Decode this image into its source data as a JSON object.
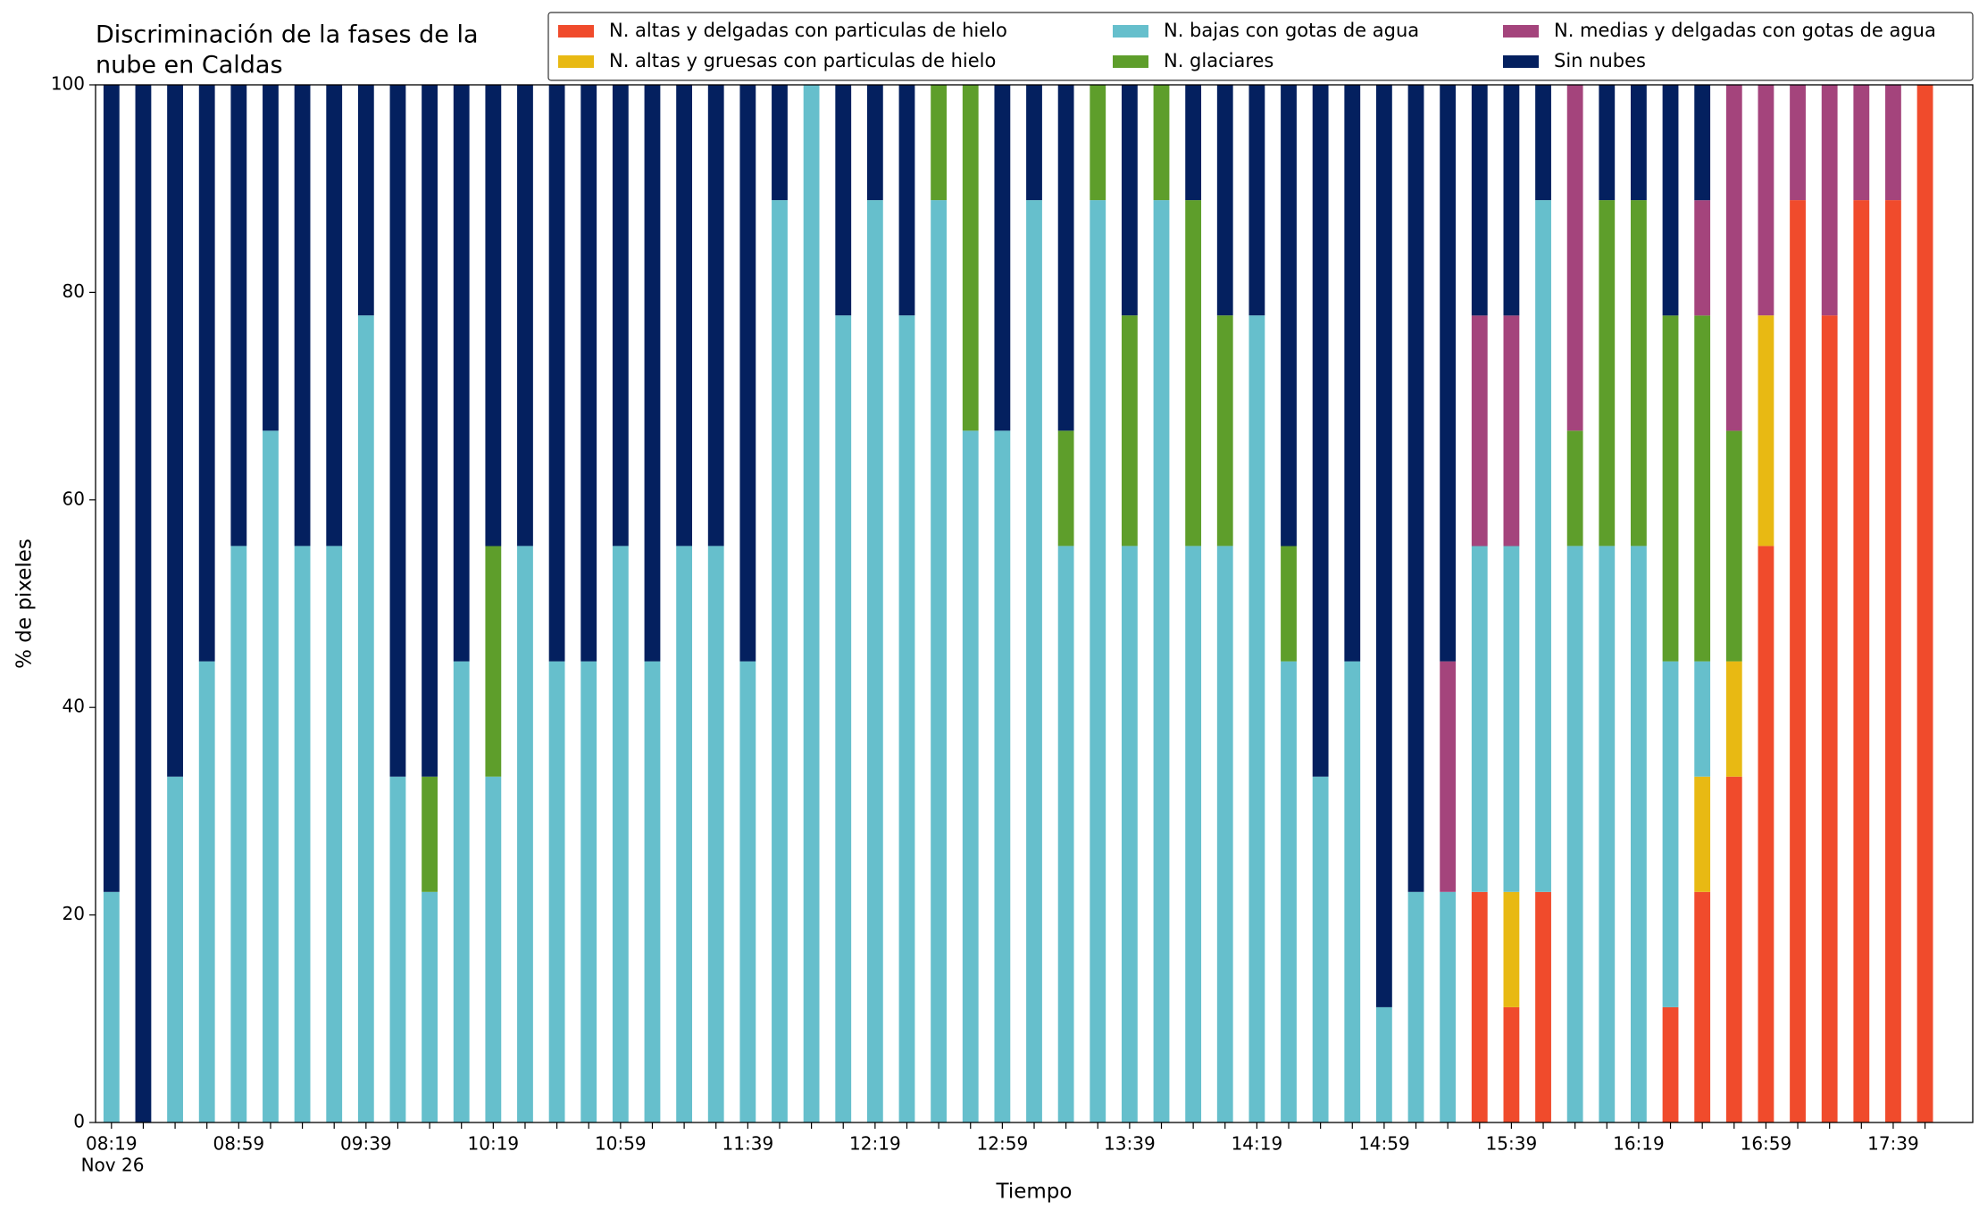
{
  "chart_data": {
    "type": "stacked_bar",
    "title": [
      "Discriminación de la fases de la",
      "nube en Caldas"
    ],
    "xlabel": "Tiempo",
    "ylabel": "% de pixeles",
    "x_sublabel": "Nov 26",
    "categories": [
      "08:19",
      null,
      null,
      null,
      "08:59",
      null,
      null,
      null,
      "09:39",
      null,
      null,
      null,
      "10:19",
      null,
      null,
      null,
      "10:59",
      null,
      null,
      null,
      "11:39",
      null,
      null,
      null,
      "12:19",
      null,
      null,
      null,
      "12:59",
      null,
      null,
      null,
      "13:39",
      null,
      null,
      null,
      "14:19",
      null,
      null,
      null,
      "14:59",
      null,
      null,
      null,
      "15:39",
      null,
      null,
      null,
      "16:19",
      null,
      null,
      null,
      "16:59",
      null,
      null,
      null,
      "17:39",
      null
    ],
    "ylim": [
      0,
      100
    ],
    "yticks": [
      0,
      20,
      40,
      60,
      80,
      100
    ],
    "legend": "top-right",
    "series": [
      {
        "name": "N. altas y delgadas con particulas de hielo",
        "color": "#f04b2c",
        "values": [
          0,
          0,
          0,
          0,
          0,
          0,
          0,
          0,
          0,
          0,
          0,
          0,
          0,
          0,
          0,
          0,
          0,
          0,
          0,
          0,
          0,
          0,
          0,
          0,
          0,
          0,
          0,
          0,
          0,
          0,
          0,
          0,
          0,
          0,
          0,
          0,
          0,
          0,
          0,
          0,
          0,
          0,
          0,
          22.22,
          11.11,
          22.22,
          0,
          0,
          0,
          11.11,
          22.22,
          33.33,
          55.56,
          88.89,
          77.78,
          88.89,
          88.89,
          100
        ]
      },
      {
        "name": "N. altas y gruesas con particulas de hielo",
        "color": "#e8b913",
        "values": [
          0,
          0,
          0,
          0,
          0,
          0,
          0,
          0,
          0,
          0,
          0,
          0,
          0,
          0,
          0,
          0,
          0,
          0,
          0,
          0,
          0,
          0,
          0,
          0,
          0,
          0,
          0,
          0,
          0,
          0,
          0,
          0,
          0,
          0,
          0,
          0,
          0,
          0,
          0,
          0,
          0,
          0,
          0,
          0,
          11.11,
          0,
          0,
          0,
          0,
          0,
          11.11,
          11.11,
          22.22,
          0,
          0,
          0,
          0,
          0
        ]
      },
      {
        "name": "N. bajas con gotas de agua",
        "color": "#66bfcc",
        "values": [
          22.22,
          0,
          33.33,
          44.44,
          55.56,
          66.67,
          55.56,
          55.56,
          77.78,
          33.33,
          22.22,
          44.44,
          33.33,
          55.56,
          44.44,
          44.44,
          55.56,
          44.44,
          55.56,
          55.56,
          44.44,
          88.89,
          100,
          77.78,
          88.89,
          77.78,
          88.89,
          66.67,
          66.67,
          88.89,
          55.56,
          88.89,
          55.56,
          88.89,
          55.56,
          55.56,
          77.78,
          44.44,
          33.33,
          44.44,
          11.11,
          22.22,
          22.22,
          33.33,
          33.33,
          66.67,
          55.56,
          55.56,
          55.56,
          33.33,
          11.11,
          0,
          0,
          0,
          0,
          0,
          0,
          0
        ]
      },
      {
        "name": "N. glaciares",
        "color": "#5e9e2b",
        "values": [
          0,
          0,
          0,
          0,
          0,
          0,
          0,
          0,
          0,
          0,
          11.11,
          0,
          22.22,
          0,
          0,
          0,
          0,
          0,
          0,
          0,
          0,
          0,
          0,
          0,
          0,
          0,
          11.11,
          33.33,
          0,
          0,
          11.11,
          11.11,
          22.22,
          11.11,
          33.33,
          22.22,
          0,
          11.11,
          0,
          0,
          0,
          0,
          0,
          0,
          0,
          0,
          11.11,
          33.33,
          33.33,
          33.33,
          33.33,
          22.22,
          0,
          0,
          0,
          0,
          0,
          0
        ]
      },
      {
        "name": "N. medias y delgadas con gotas de agua",
        "color": "#a4447c",
        "values": [
          0,
          0,
          0,
          0,
          0,
          0,
          0,
          0,
          0,
          0,
          0,
          0,
          0,
          0,
          0,
          0,
          0,
          0,
          0,
          0,
          0,
          0,
          0,
          0,
          0,
          0,
          0,
          0,
          0,
          0,
          0,
          0,
          0,
          0,
          0,
          0,
          0,
          0,
          0,
          0,
          0,
          0,
          22.22,
          22.22,
          22.22,
          0,
          33.33,
          0,
          0,
          0,
          11.11,
          33.33,
          22.22,
          11.11,
          22.22,
          11.11,
          11.11,
          0
        ]
      },
      {
        "name": "Sin nubes",
        "color": "#04205f",
        "values": [
          77.78,
          100,
          66.67,
          55.56,
          44.44,
          33.33,
          44.44,
          44.44,
          22.22,
          66.67,
          66.67,
          55.56,
          44.44,
          44.44,
          55.56,
          55.56,
          44.44,
          55.56,
          44.44,
          44.44,
          55.56,
          11.11,
          0,
          22.22,
          11.11,
          22.22,
          0,
          0,
          33.33,
          11.11,
          33.33,
          0,
          22.22,
          0,
          11.11,
          22.22,
          22.22,
          44.44,
          66.67,
          55.56,
          88.89,
          77.78,
          55.56,
          22.22,
          22.22,
          11.11,
          0,
          11.11,
          11.11,
          22.22,
          11.11,
          0,
          0,
          0,
          0,
          0,
          0,
          0
        ]
      }
    ]
  }
}
